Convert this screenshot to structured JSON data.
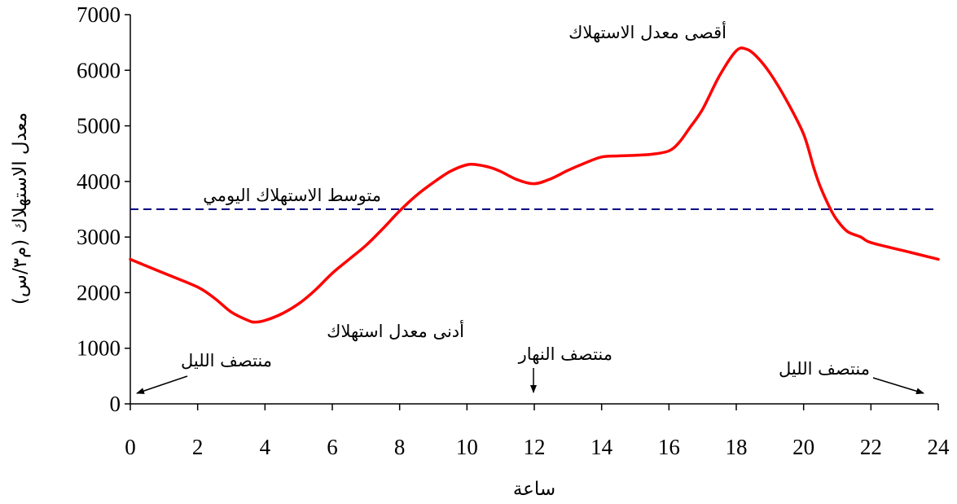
{
  "chart_data": {
    "type": "line",
    "xlabel": "ساعة",
    "ylabel": "معدل الاستهلاك (م٣/س)",
    "xlim": [
      0,
      24
    ],
    "ylim": [
      0,
      7000
    ],
    "x_ticks": [
      0,
      2,
      4,
      6,
      8,
      10,
      12,
      14,
      16,
      18,
      20,
      22,
      24
    ],
    "y_ticks": [
      0,
      1000,
      2000,
      3000,
      4000,
      5000,
      6000,
      7000
    ],
    "grid": false,
    "colors": {
      "series": "#ff0000",
      "average": "#000080"
    },
    "series": [
      {
        "x": [
          0,
          1,
          2,
          2.5,
          3,
          3.5,
          3.7,
          4,
          4.5,
          5,
          5.5,
          6,
          6.5,
          7,
          7.5,
          8,
          8.5,
          9,
          9.5,
          10,
          10.3,
          10.7,
          11,
          11.5,
          12,
          12.5,
          13,
          13.5,
          14,
          14.5,
          15,
          15.5,
          16,
          16.3,
          16.6,
          17,
          17.5,
          18,
          18.3,
          18.6,
          19,
          19.5,
          20,
          20.3,
          20.5,
          20.8,
          21,
          21.3,
          21.7,
          22,
          23,
          24
        ],
        "y": [
          2600,
          2350,
          2100,
          1900,
          1650,
          1500,
          1470,
          1500,
          1620,
          1800,
          2050,
          2350,
          2600,
          2850,
          3150,
          3470,
          3750,
          3980,
          4180,
          4300,
          4300,
          4250,
          4180,
          4030,
          3960,
          4050,
          4200,
          4330,
          4440,
          4460,
          4470,
          4490,
          4550,
          4700,
          4950,
          5300,
          5900,
          6350,
          6380,
          6250,
          5950,
          5450,
          4850,
          4250,
          3900,
          3500,
          3300,
          3100,
          3000,
          2900,
          2750,
          2600
        ]
      }
    ],
    "reference_line": {
      "y": 3500
    },
    "annotations": {
      "average": "متوسط الاستهلاك اليومي",
      "max": "أقصى معدل الاستهلاك",
      "min": "أدنى معدل استهلاك",
      "midnight_start": "منتصف الليل",
      "noon": "منتصف النهار",
      "midnight_end": "منتصف الليل"
    }
  }
}
